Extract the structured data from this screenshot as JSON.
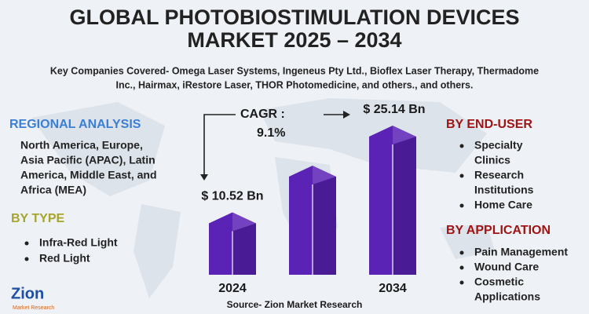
{
  "title": [
    "GLOBAL PHOTOBIOSTIMULATION DEVICES",
    "MARKET 2025 – 2034"
  ],
  "subtitle": [
    "Key Companies Covered- Omega Laser Systems, Ingeneus Pty Ltd., Bioflex Laser Therapy, Thermadome",
    "Inc., Hairmax, iRestore Laser, THOR Photomedicine, and others., and others."
  ],
  "regional": {
    "heading": "REGIONAL ANALYSIS",
    "lines": [
      "North America, Europe,",
      "Asia Pacific (APAC), Latin",
      "America, Middle East, and",
      "Africa (MEA)"
    ]
  },
  "by_type": {
    "heading": "BY TYPE",
    "items": [
      "Infra-Red Light",
      "Red Light"
    ]
  },
  "by_end_user": {
    "heading": "BY END-USER",
    "items": [
      [
        "Specialty",
        "Clinics"
      ],
      [
        "Research",
        "Institutions"
      ],
      [
        "Home Care"
      ]
    ]
  },
  "by_application": {
    "heading": "BY APPLICATION",
    "items": [
      [
        "Pain Management"
      ],
      [
        "Wound Care"
      ],
      [
        "Cosmetic",
        "Applications"
      ]
    ]
  },
  "cagr": {
    "label": "CAGR :",
    "value": "9.1%"
  },
  "source": "Source- Zion Market Research",
  "logo": {
    "name": "Zion",
    "tagline": "Market Research"
  },
  "chart_data": {
    "type": "bar",
    "categories": [
      "2024",
      null,
      "2034"
    ],
    "values": [
      10.52,
      18.4,
      25.14
    ],
    "value_labels": [
      "$ 10.52 Bn",
      null,
      "$ 25.14 Bn"
    ],
    "color": "#5a22b5"
  }
}
